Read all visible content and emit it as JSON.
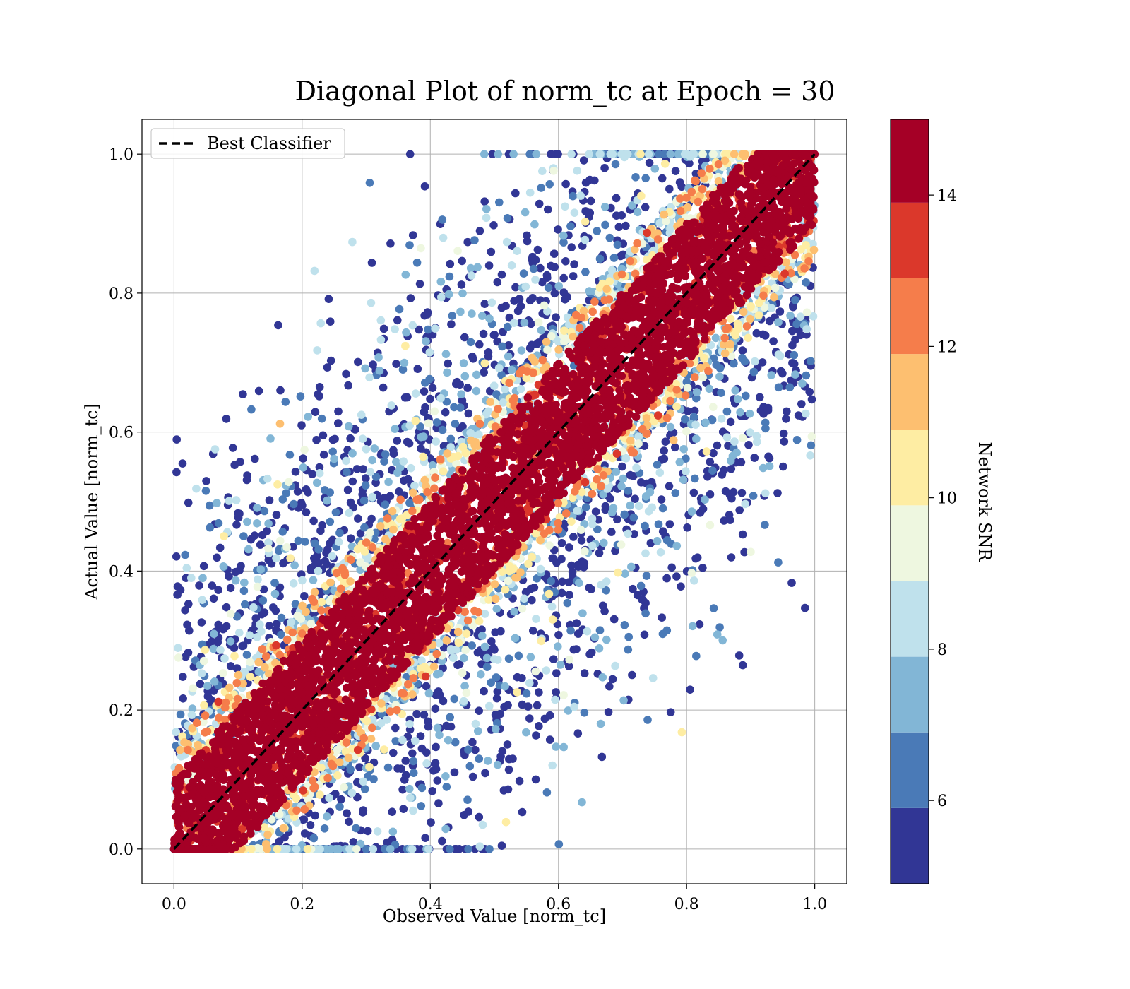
{
  "chart_data": {
    "type": "scatter",
    "title": "Diagonal Plot of norm_tc at Epoch = 30",
    "xlabel": "Observed Value [norm_tc]",
    "ylabel": "Actual Value [norm_tc]",
    "xlim": [
      -0.05,
      1.05
    ],
    "ylim": [
      -0.05,
      1.05
    ],
    "x_ticks": [
      "0.0",
      "0.2",
      "0.4",
      "0.6",
      "0.8",
      "1.0"
    ],
    "y_ticks": [
      "0.0",
      "0.2",
      "0.4",
      "0.6",
      "0.8",
      "1.0"
    ],
    "grid": true,
    "legend": {
      "position": "top-left",
      "entries": [
        "Best Classifier"
      ]
    },
    "reference_line": {
      "name": "Best Classifier",
      "x": [
        0,
        1
      ],
      "y": [
        0,
        1
      ],
      "style": "dashed",
      "color": "#000000"
    },
    "colorbar": {
      "label": "Network SNR",
      "range": [
        4.9,
        15
      ],
      "tick_values": [
        6,
        8,
        10,
        12,
        14
      ],
      "tick_labels": [
        "6",
        "8",
        "10",
        "12",
        "14"
      ],
      "bins": [
        {
          "from": 4.9,
          "to": 5.9,
          "color": "#313695"
        },
        {
          "from": 5.9,
          "to": 6.9,
          "color": "#4a7ab7"
        },
        {
          "from": 6.9,
          "to": 7.9,
          "color": "#82b6d6"
        },
        {
          "from": 7.9,
          "to": 8.9,
          "color": "#bfe1ec"
        },
        {
          "from": 8.9,
          "to": 9.9,
          "color": "#eef7e0"
        },
        {
          "from": 9.9,
          "to": 10.9,
          "color": "#feeda3"
        },
        {
          "from": 10.9,
          "to": 11.9,
          "color": "#fdbf70"
        },
        {
          "from": 11.9,
          "to": 12.9,
          "color": "#f57d4b"
        },
        {
          "from": 12.9,
          "to": 13.9,
          "color": "#db382b"
        },
        {
          "from": 13.9,
          "to": 15.0,
          "color": "#a50026"
        }
      ]
    },
    "series": [
      {
        "snr_bin": "high (>=14)",
        "color": "#a50026",
        "description_band_half_width": 0.12
      },
      {
        "snr_bin": "low (<6)",
        "color": "#313695"
      }
    ]
  }
}
